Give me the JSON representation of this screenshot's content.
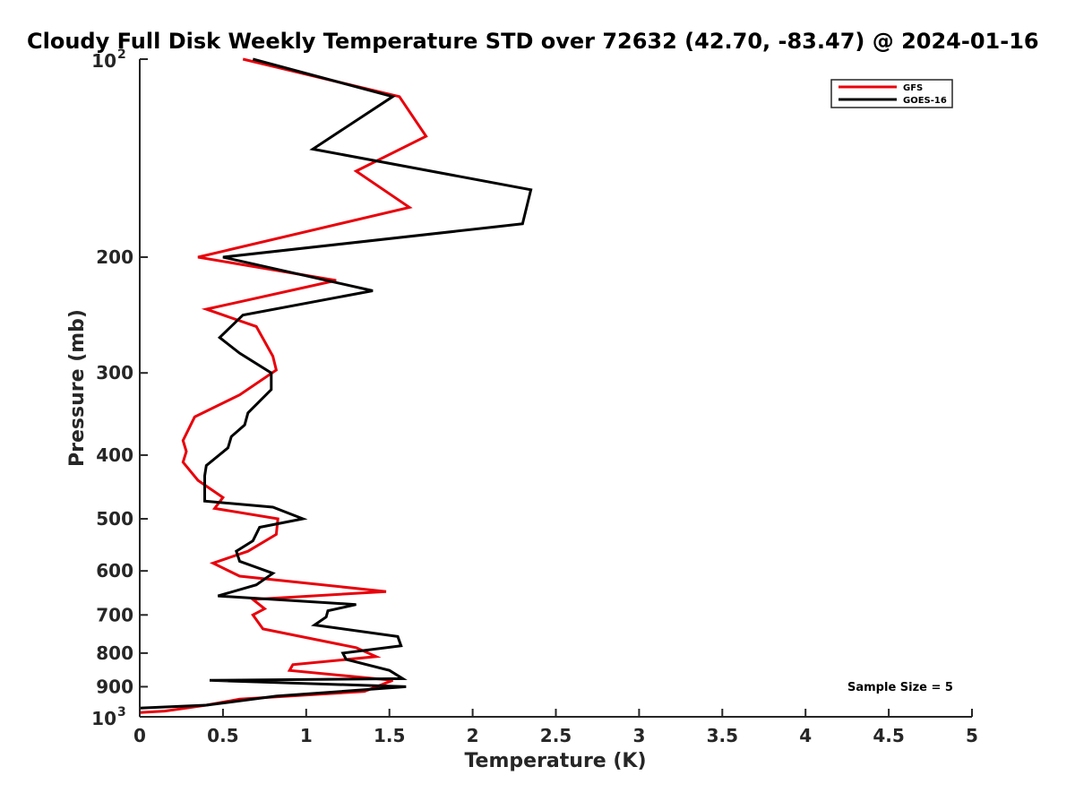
{
  "chart_data": {
    "type": "line",
    "title": "Cloudy Full Disk Weekly Temperature STD over 72632 (42.70, -83.47) @ 2024-01-16",
    "xlabel": "Temperature (K)",
    "ylabel": "Pressure (mb)",
    "xlim": [
      0,
      5
    ],
    "ylim": [
      100,
      1000
    ],
    "y_scale": "log",
    "y_reversed": true,
    "x_ticks": [
      "0",
      "0.5",
      "1",
      "1.5",
      "2",
      "2.5",
      "3",
      "3.5",
      "4",
      "4.5",
      "5"
    ],
    "y_ticks": [
      {
        "value": 100,
        "base": "10",
        "exp": "2"
      },
      {
        "value": 200,
        "label": "200"
      },
      {
        "value": 300,
        "label": "300"
      },
      {
        "value": 400,
        "label": "400"
      },
      {
        "value": 500,
        "label": "500"
      },
      {
        "value": 600,
        "label": "600"
      },
      {
        "value": 700,
        "label": "700"
      },
      {
        "value": 800,
        "label": "800"
      },
      {
        "value": 900,
        "label": "900"
      },
      {
        "value": 1000,
        "base": "10",
        "exp": "3"
      }
    ],
    "legend_position": "top-right",
    "annotation": "Sample Size = 5",
    "series": [
      {
        "name": "GFS",
        "color": "#e8000b",
        "points": [
          [
            0.62,
            100
          ],
          [
            1.56,
            114
          ],
          [
            1.72,
            131
          ],
          [
            1.3,
            148
          ],
          [
            1.62,
            168
          ],
          [
            0.35,
            200
          ],
          [
            1.18,
            217
          ],
          [
            0.4,
            240
          ],
          [
            0.7,
            255
          ],
          [
            0.8,
            283
          ],
          [
            0.82,
            297
          ],
          [
            0.6,
            324
          ],
          [
            0.33,
            350
          ],
          [
            0.26,
            380
          ],
          [
            0.28,
            395
          ],
          [
            0.26,
            410
          ],
          [
            0.35,
            437
          ],
          [
            0.5,
            464
          ],
          [
            0.45,
            482
          ],
          [
            0.83,
            500
          ],
          [
            0.82,
            528
          ],
          [
            0.65,
            560
          ],
          [
            0.44,
            584
          ],
          [
            0.6,
            611
          ],
          [
            1.48,
            645
          ],
          [
            0.68,
            663
          ],
          [
            0.75,
            685
          ],
          [
            0.68,
            700
          ],
          [
            0.74,
            735
          ],
          [
            1.3,
            785
          ],
          [
            1.42,
            810
          ],
          [
            0.92,
            833
          ],
          [
            0.9,
            850
          ],
          [
            1.52,
            880
          ],
          [
            1.35,
            915
          ],
          [
            0.6,
            940
          ],
          [
            0.4,
            960
          ],
          [
            0.15,
            980
          ],
          [
            0,
            985
          ]
        ]
      },
      {
        "name": "GOES-16",
        "color": "#000000",
        "points": [
          [
            0.68,
            100
          ],
          [
            1.52,
            114
          ],
          [
            1.04,
            137
          ],
          [
            2.35,
            158
          ],
          [
            2.3,
            178
          ],
          [
            0.5,
            200
          ],
          [
            1.4,
            225
          ],
          [
            0.62,
            245
          ],
          [
            0.48,
            265
          ],
          [
            0.6,
            280
          ],
          [
            0.79,
            300
          ],
          [
            0.79,
            318
          ],
          [
            0.65,
            345
          ],
          [
            0.63,
            360
          ],
          [
            0.55,
            375
          ],
          [
            0.53,
            390
          ],
          [
            0.4,
            415
          ],
          [
            0.39,
            430
          ],
          [
            0.39,
            470
          ],
          [
            0.8,
            480
          ],
          [
            0.98,
            500
          ],
          [
            0.72,
            515
          ],
          [
            0.68,
            540
          ],
          [
            0.58,
            560
          ],
          [
            0.6,
            580
          ],
          [
            0.8,
            605
          ],
          [
            0.7,
            630
          ],
          [
            0.47,
            655
          ],
          [
            1.3,
            675
          ],
          [
            1.13,
            690
          ],
          [
            1.12,
            705
          ],
          [
            1.05,
            725
          ],
          [
            1.55,
            755
          ],
          [
            1.57,
            780
          ],
          [
            1.22,
            800
          ],
          [
            1.24,
            818
          ],
          [
            1.5,
            850
          ],
          [
            1.58,
            875
          ],
          [
            0.42,
            880
          ],
          [
            1.6,
            900
          ],
          [
            0.82,
            930
          ],
          [
            0.4,
            960
          ],
          [
            0,
            970
          ]
        ]
      }
    ]
  }
}
